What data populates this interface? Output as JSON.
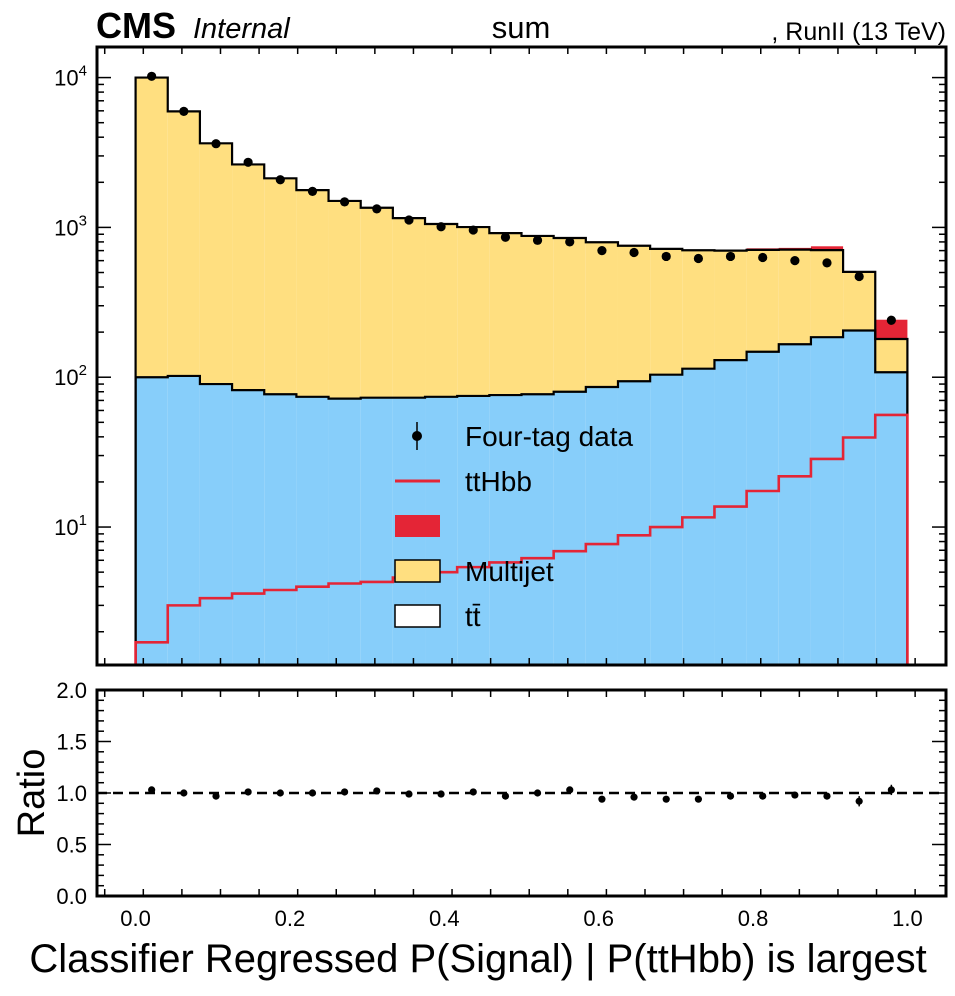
{
  "header": {
    "experiment": "CMS",
    "status": "Internal",
    "title": "sum",
    "lumi": ", RunII (13 TeV)"
  },
  "legend": {
    "placement": "center-bottom",
    "entries": [
      {
        "label": "Four-tag data",
        "style": "data",
        "color": "#000000"
      },
      {
        "label": "ttHbb",
        "style": "line",
        "color": "#e42536"
      },
      {
        "label": "",
        "style": "fill",
        "color": "#e42536"
      },
      {
        "label": "Multijet",
        "style": "fill",
        "color": "#ffdf80"
      },
      {
        "label": "tt̄",
        "style": "fill",
        "color": "#ffffff"
      }
    ]
  },
  "chart_data": [
    {
      "type": "stacked-histogram",
      "yscale": "log",
      "xlim": [
        -0.05,
        1.05
      ],
      "ylim": [
        1.2,
        16000
      ],
      "ytick_labels": [
        "10^1",
        "10^2",
        "10^3",
        "10^4"
      ],
      "bin_edges": [
        0.0,
        0.041667,
        0.083333,
        0.125,
        0.166667,
        0.208333,
        0.25,
        0.291667,
        0.333333,
        0.375,
        0.416667,
        0.458333,
        0.5,
        0.541667,
        0.583333,
        0.625,
        0.666667,
        0.708333,
        0.75,
        0.791667,
        0.833333,
        0.875,
        0.916667,
        0.958333,
        1.0
      ],
      "series": [
        {
          "name": "tt̄",
          "color": "#87cefa",
          "values": [
            100,
            102,
            90,
            82,
            77,
            74,
            72,
            73,
            73,
            74,
            75,
            76,
            77,
            80,
            86,
            94,
            104,
            114,
            130,
            148,
            166,
            185,
            205,
            108
          ]
        },
        {
          "name": "Multijet",
          "color": "#ffdf80",
          "values": [
            9900,
            5850,
            3550,
            2550,
            2050,
            1700,
            1430,
            1280,
            1080,
            980,
            930,
            840,
            800,
            770,
            710,
            660,
            615,
            590,
            570,
            560,
            545,
            520,
            300,
            72
          ]
        },
        {
          "name": "",
          "color": "#e42536",
          "values": [
            0,
            0,
            0,
            0,
            0,
            0,
            0,
            0,
            0,
            0,
            0,
            0,
            0,
            0,
            0,
            10,
            8,
            8,
            12,
            17,
            19,
            43,
            2,
            62
          ]
        },
        {
          "name": "ttHbb",
          "color": "#e42536",
          "style": "line",
          "values": [
            1.7,
            3.0,
            3.35,
            3.6,
            3.8,
            4.0,
            4.2,
            4.3,
            4.6,
            5.0,
            5.4,
            5.8,
            6.2,
            6.9,
            7.7,
            8.8,
            10.0,
            11.6,
            13.7,
            17.4,
            21.8,
            28.5,
            39.6,
            56
          ]
        }
      ],
      "data": {
        "name": "Four-tag data",
        "x": [
          0.0208,
          0.0625,
          0.1042,
          0.1458,
          0.1875,
          0.2292,
          0.2708,
          0.3125,
          0.3542,
          0.3958,
          0.4375,
          0.4792,
          0.5208,
          0.5625,
          0.6042,
          0.6458,
          0.6875,
          0.7292,
          0.7708,
          0.8125,
          0.8542,
          0.8958,
          0.9375,
          0.9792
        ],
        "y": [
          10200,
          5950,
          3620,
          2720,
          2080,
          1740,
          1480,
          1330,
          1120,
          1010,
          960,
          860,
          820,
          800,
          700,
          680,
          640,
          620,
          640,
          630,
          600,
          580,
          470,
          240
        ]
      }
    },
    {
      "type": "scatter",
      "ylabel": "Ratio",
      "xlabel": "Classifier Regressed P(Signal) | P(ttHbb) is largest",
      "xlim": [
        -0.05,
        1.05
      ],
      "ylim": [
        0.0,
        2.0
      ],
      "xtick_labels": [
        "0.0",
        "0.2",
        "0.4",
        "0.6",
        "0.8",
        "1.0"
      ],
      "ytick_labels": [
        "0.0",
        "0.5",
        "1.0",
        "1.5",
        "2.0"
      ],
      "reference_line": 1.0,
      "x": [
        0.0208,
        0.0625,
        0.1042,
        0.1458,
        0.1875,
        0.2292,
        0.2708,
        0.3125,
        0.3542,
        0.3958,
        0.4375,
        0.4792,
        0.5208,
        0.5625,
        0.6042,
        0.6458,
        0.6875,
        0.7292,
        0.7708,
        0.8125,
        0.8542,
        0.8958,
        0.9375,
        0.9792
      ],
      "y": [
        1.03,
        1.0,
        0.97,
        1.01,
        1.0,
        1.0,
        1.01,
        1.02,
        0.99,
        0.99,
        1.01,
        0.97,
        1.0,
        1.03,
        0.94,
        0.96,
        0.94,
        0.94,
        0.97,
        0.97,
        0.98,
        0.97,
        0.92,
        1.03
      ]
    }
  ]
}
